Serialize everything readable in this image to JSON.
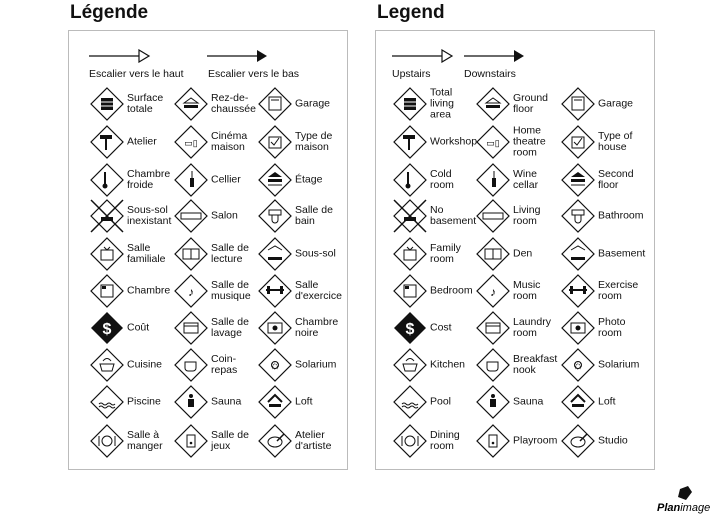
{
  "panels": [
    {
      "title": "Légende",
      "stairs_up": "Escalier vers le haut",
      "stairs_down": "Escalier vers le bas",
      "items": [
        {
          "label": "Surface\ntotale",
          "icon": "total-area"
        },
        {
          "label": "Rez-de-\nchaussée",
          "icon": "ground-floor"
        },
        {
          "label": "Garage",
          "icon": "garage"
        },
        {
          "label": "Atelier",
          "icon": "hammer"
        },
        {
          "label": "Cinéma\nmaison",
          "icon": "home-theatre"
        },
        {
          "label": "Type de\nmaison",
          "icon": "house-type"
        },
        {
          "label": "Chambre\nfroide",
          "icon": "thermometer"
        },
        {
          "label": "Cellier",
          "icon": "wine-bottle"
        },
        {
          "label": "Étage",
          "icon": "second-floor"
        },
        {
          "label": "Sous-sol\ninexistant",
          "icon": "no-basement"
        },
        {
          "label": "Salon",
          "icon": "sofa"
        },
        {
          "label": "Salle de\nbain",
          "icon": "sink"
        },
        {
          "label": "Salle\nfamiliale",
          "icon": "tv"
        },
        {
          "label": "Salle de\nlecture",
          "icon": "book"
        },
        {
          "label": "Sous-sol",
          "icon": "basement"
        },
        {
          "label": "Chambre",
          "icon": "bed"
        },
        {
          "label": "Salle de\nmusique",
          "icon": "music-note"
        },
        {
          "label": "Salle\nd'exercice",
          "icon": "dumbbell"
        },
        {
          "label": "Coût",
          "icon": "dollar"
        },
        {
          "label": "Salle de\nlavage",
          "icon": "laundry"
        },
        {
          "label": "Chambre\nnoire",
          "icon": "photo"
        },
        {
          "label": "Cuisine",
          "icon": "pot"
        },
        {
          "label": "Coin-\nrepas",
          "icon": "coffee-cup"
        },
        {
          "label": "Solarium",
          "icon": "sun"
        },
        {
          "label": "Piscine",
          "icon": "pool"
        },
        {
          "label": "Sauna",
          "icon": "sauna"
        },
        {
          "label": "Loft",
          "icon": "loft"
        },
        {
          "label": "Salle à\nmanger",
          "icon": "plate"
        },
        {
          "label": "Salle de\njeux",
          "icon": "game"
        },
        {
          "label": "Atelier\nd'artiste",
          "icon": "palette"
        }
      ]
    },
    {
      "title": "Legend",
      "stairs_up": "Upstairs",
      "stairs_down": "Downstairs",
      "items": [
        {
          "label": "Total\nliving\narea",
          "icon": "total-area"
        },
        {
          "label": "Ground\nfloor",
          "icon": "ground-floor"
        },
        {
          "label": "Garage",
          "icon": "garage"
        },
        {
          "label": "Workshop",
          "icon": "hammer"
        },
        {
          "label": "Home\ntheatre\nroom",
          "icon": "home-theatre"
        },
        {
          "label": "Type of\nhouse",
          "icon": "house-type"
        },
        {
          "label": "Cold\nroom",
          "icon": "thermometer"
        },
        {
          "label": "Wine\ncellar",
          "icon": "wine-bottle"
        },
        {
          "label": "Second\nfloor",
          "icon": "second-floor"
        },
        {
          "label": "No\nbasement",
          "icon": "no-basement"
        },
        {
          "label": "Living\nroom",
          "icon": "sofa"
        },
        {
          "label": "Bathroom",
          "icon": "sink"
        },
        {
          "label": "Family\nroom",
          "icon": "tv"
        },
        {
          "label": "Den",
          "icon": "book"
        },
        {
          "label": "Basement",
          "icon": "basement"
        },
        {
          "label": "Bedroom",
          "icon": "bed"
        },
        {
          "label": "Music\nroom",
          "icon": "music-note"
        },
        {
          "label": "Exercise\nroom",
          "icon": "dumbbell"
        },
        {
          "label": "Cost",
          "icon": "dollar"
        },
        {
          "label": "Laundry\nroom",
          "icon": "laundry"
        },
        {
          "label": "Photo\nroom",
          "icon": "photo"
        },
        {
          "label": "Kitchen",
          "icon": "pot"
        },
        {
          "label": "Breakfast\nnook",
          "icon": "coffee-cup"
        },
        {
          "label": "Solarium",
          "icon": "sun"
        },
        {
          "label": "Pool",
          "icon": "pool"
        },
        {
          "label": "Sauna",
          "icon": "sauna"
        },
        {
          "label": "Loft",
          "icon": "loft"
        },
        {
          "label": "Dining\nroom",
          "icon": "plate"
        },
        {
          "label": "Playroom",
          "icon": "game"
        },
        {
          "label": "Studio",
          "icon": "palette"
        }
      ]
    }
  ],
  "logo": "PlanImage"
}
